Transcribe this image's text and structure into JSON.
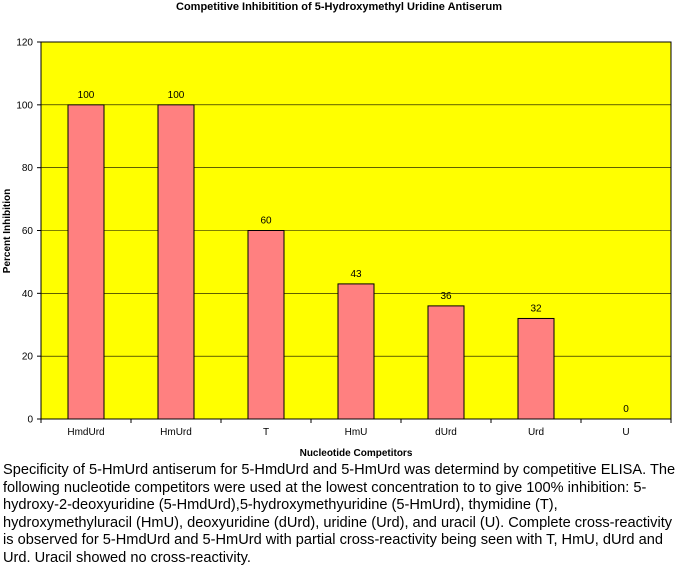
{
  "chart_data": {
    "type": "bar",
    "title": "Competitive Inhibitition of 5-Hydroxymethyl Uridine Antiserum",
    "xlabel": "Nucleotide Competitors",
    "ylabel": "Percent Inhibition",
    "categories": [
      "HmdUrd",
      "HmUrd",
      "T",
      "HmU",
      "dUrd",
      "Urd",
      "U"
    ],
    "values": [
      100,
      100,
      60,
      43,
      36,
      32,
      0
    ],
    "data_labels": [
      "100",
      "100",
      "60",
      "43",
      "36",
      "32",
      "0"
    ],
    "ylim": [
      0,
      120
    ],
    "yticks": [
      "0",
      "20",
      "40",
      "60",
      "80",
      "100",
      "120"
    ],
    "grid": true,
    "colors": {
      "plot_bg": "#ffff00",
      "bar": "#ff8080",
      "grid": "#000000"
    }
  },
  "caption": "Specificity of 5-HmUrd antiserum for 5-HmdUrd and 5-HmUrd was determind by competitive ELISA.  The following nucleotide competitors were used at the lowest concentration to to give 100% inhibition: 5-hydroxy-2-deoxyuridine (5-HmdUrd),5-hydroxymethyuridine (5-HmUrd), thymidine (T), hydroxymethyluracil (HmU), deoxyuridine (dUrd), uridine (Urd), and uracil (U).  Complete cross-reactivity is observed for 5-HmdUrd and 5-HmUrd with partial cross-reactivity being seen with T, HmU, dUrd and Urd.  Uracil showed no cross-reactivity."
}
